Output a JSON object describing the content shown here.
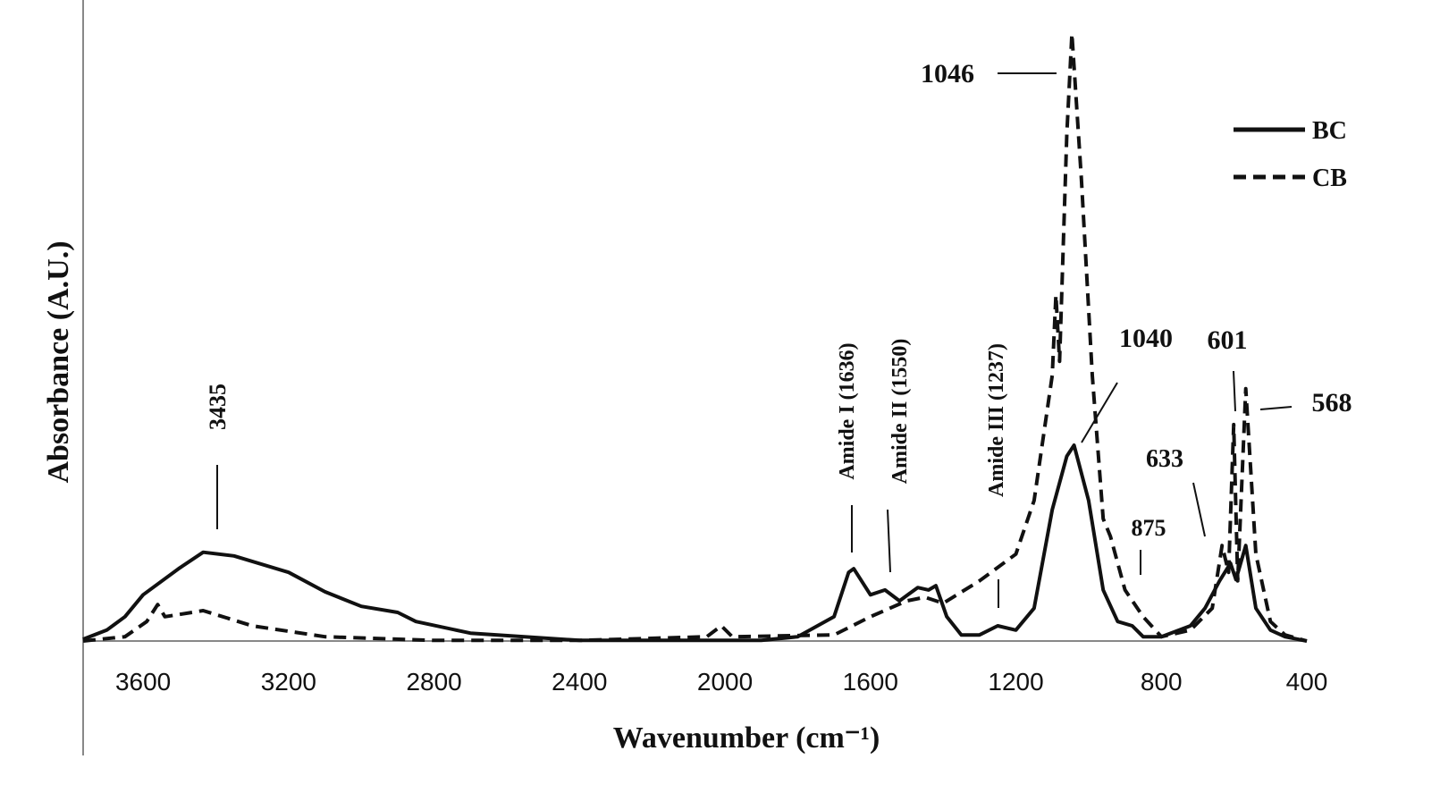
{
  "chart_data": {
    "type": "line",
    "x_label": "Wavenumber (cm⁻¹)",
    "y_label": "Absorbance (A.U.)",
    "xlim": [
      3765,
      400
    ],
    "xticks": [
      3600,
      3200,
      2800,
      2400,
      2000,
      1600,
      1200,
      800,
      400
    ],
    "ylim": [
      0,
      1
    ],
    "legend": "top-right",
    "series": [
      {
        "name": "BC",
        "color": "#111111",
        "style": "solid",
        "x": [
          3765,
          3700,
          3650,
          3600,
          3500,
          3435,
          3350,
          3200,
          3100,
          3000,
          2900,
          2850,
          2700,
          2400,
          2000,
          1900,
          1800,
          1700,
          1660,
          1646,
          1600,
          1560,
          1520,
          1470,
          1440,
          1420,
          1390,
          1350,
          1300,
          1250,
          1200,
          1150,
          1100,
          1060,
          1040,
          1000,
          960,
          920,
          880,
          850,
          800,
          720,
          680,
          640,
          610,
          595,
          568,
          540,
          500,
          460,
          400
        ],
        "values": [
          0.003,
          0.018,
          0.04,
          0.076,
          0.12,
          0.146,
          0.14,
          0.113,
          0.081,
          0.057,
          0.047,
          0.032,
          0.013,
          0.001,
          0.001,
          0.001,
          0.007,
          0.04,
          0.113,
          0.119,
          0.076,
          0.084,
          0.066,
          0.088,
          0.084,
          0.091,
          0.04,
          0.01,
          0.01,
          0.025,
          0.018,
          0.054,
          0.216,
          0.304,
          0.322,
          0.231,
          0.084,
          0.032,
          0.025,
          0.007,
          0.007,
          0.025,
          0.054,
          0.099,
          0.128,
          0.101,
          0.157,
          0.054,
          0.018,
          0.007,
          0
        ]
      },
      {
        "name": "CB",
        "color": "#111111",
        "style": "dashed",
        "x": [
          3765,
          3650,
          3590,
          3560,
          3540,
          3435,
          3300,
          3100,
          2800,
          2400,
          2050,
          2010,
          1980,
          1700,
          1600,
          1500,
          1450,
          1400,
          1300,
          1200,
          1150,
          1100,
          1090,
          1080,
          1060,
          1046,
          1020,
          990,
          960,
          940,
          900,
          850,
          800,
          720,
          660,
          633,
          615,
          601,
          590,
          568,
          540,
          500,
          460,
          400
        ],
        "values": [
          0,
          0.007,
          0.032,
          0.06,
          0.04,
          0.05,
          0.025,
          0.007,
          0.001,
          0.001,
          0.007,
          0.025,
          0.007,
          0.01,
          0.04,
          0.066,
          0.072,
          0.062,
          0.099,
          0.143,
          0.231,
          0.437,
          0.569,
          0.46,
          0.834,
          0.999,
          0.76,
          0.437,
          0.201,
          0.172,
          0.084,
          0.04,
          0.007,
          0.018,
          0.054,
          0.157,
          0.113,
          0.356,
          0.099,
          0.415,
          0.143,
          0.032,
          0.01,
          0
        ]
      }
    ],
    "annotations": [
      "3435",
      "Amide I (1636)",
      "Amide II (1550)",
      "Amide III (1237)",
      "1046",
      "1040",
      "601",
      "568",
      "633",
      "875"
    ]
  }
}
